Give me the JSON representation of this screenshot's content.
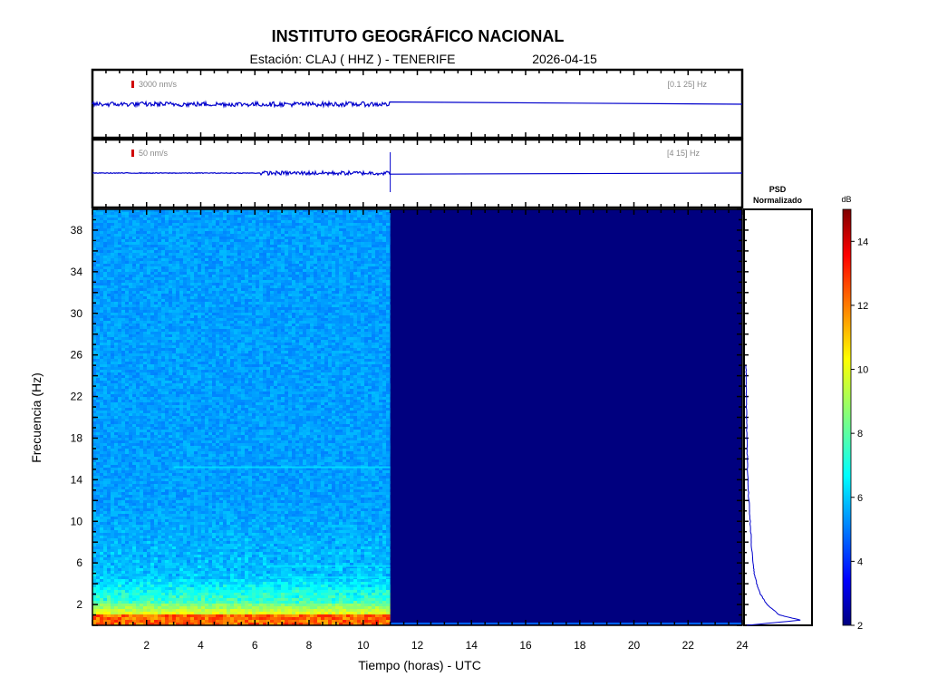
{
  "header": {
    "title": "INSTITUTO GEOGRÁFICO NACIONAL",
    "station_line": "Estación:  CLAJ ( HHZ ) - TENERIFE",
    "date": "2026-04-15"
  },
  "trace_top": {
    "scale_label": "3000 nm/s",
    "band_label": "[0.1 25] Hz",
    "data_until_hour": 11.0,
    "color": "#0000cc",
    "scale_color": "#d00000"
  },
  "trace_bottom": {
    "scale_label": "50 nm/s",
    "band_label": "[4 15] Hz",
    "data_until_hour": 11.0,
    "active_from_hour": 6.2,
    "color": "#0000cc",
    "scale_color": "#d00000"
  },
  "psd": {
    "title_line1": "PSD",
    "title_line2": "Normalizado",
    "color": "#0000cc"
  },
  "colorbar": {
    "unit": "dB",
    "min": 2,
    "max": 15,
    "ticks": [
      "2",
      "4",
      "6",
      "8",
      "10",
      "12",
      "14"
    ],
    "colormap": "jet"
  },
  "chart_data": {
    "type": "heatmap",
    "xlabel": "Tiempo (horas) - UTC",
    "ylabel": "Frecuencia  (Hz)",
    "xlim": [
      0,
      24
    ],
    "ylim": [
      0,
      40
    ],
    "xticks": [
      "2",
      "4",
      "6",
      "8",
      "10",
      "12",
      "14",
      "16",
      "18",
      "20",
      "22",
      "24"
    ],
    "yticks": [
      "2",
      "6",
      "10",
      "14",
      "18",
      "22",
      "26",
      "30",
      "34",
      "38"
    ],
    "data_until_hour": 11.0,
    "psd_curve": {
      "freq_hz": [
        0,
        0.5,
        1,
        2,
        3,
        4,
        5,
        6,
        8,
        10,
        12,
        14,
        16,
        18,
        20,
        22,
        24,
        25
      ],
      "normalized": [
        0.02,
        0.9,
        0.55,
        0.35,
        0.24,
        0.18,
        0.14,
        0.12,
        0.09,
        0.07,
        0.05,
        0.035,
        0.025,
        0.018,
        0.012,
        0.008,
        0.004,
        0.0
      ]
    }
  }
}
